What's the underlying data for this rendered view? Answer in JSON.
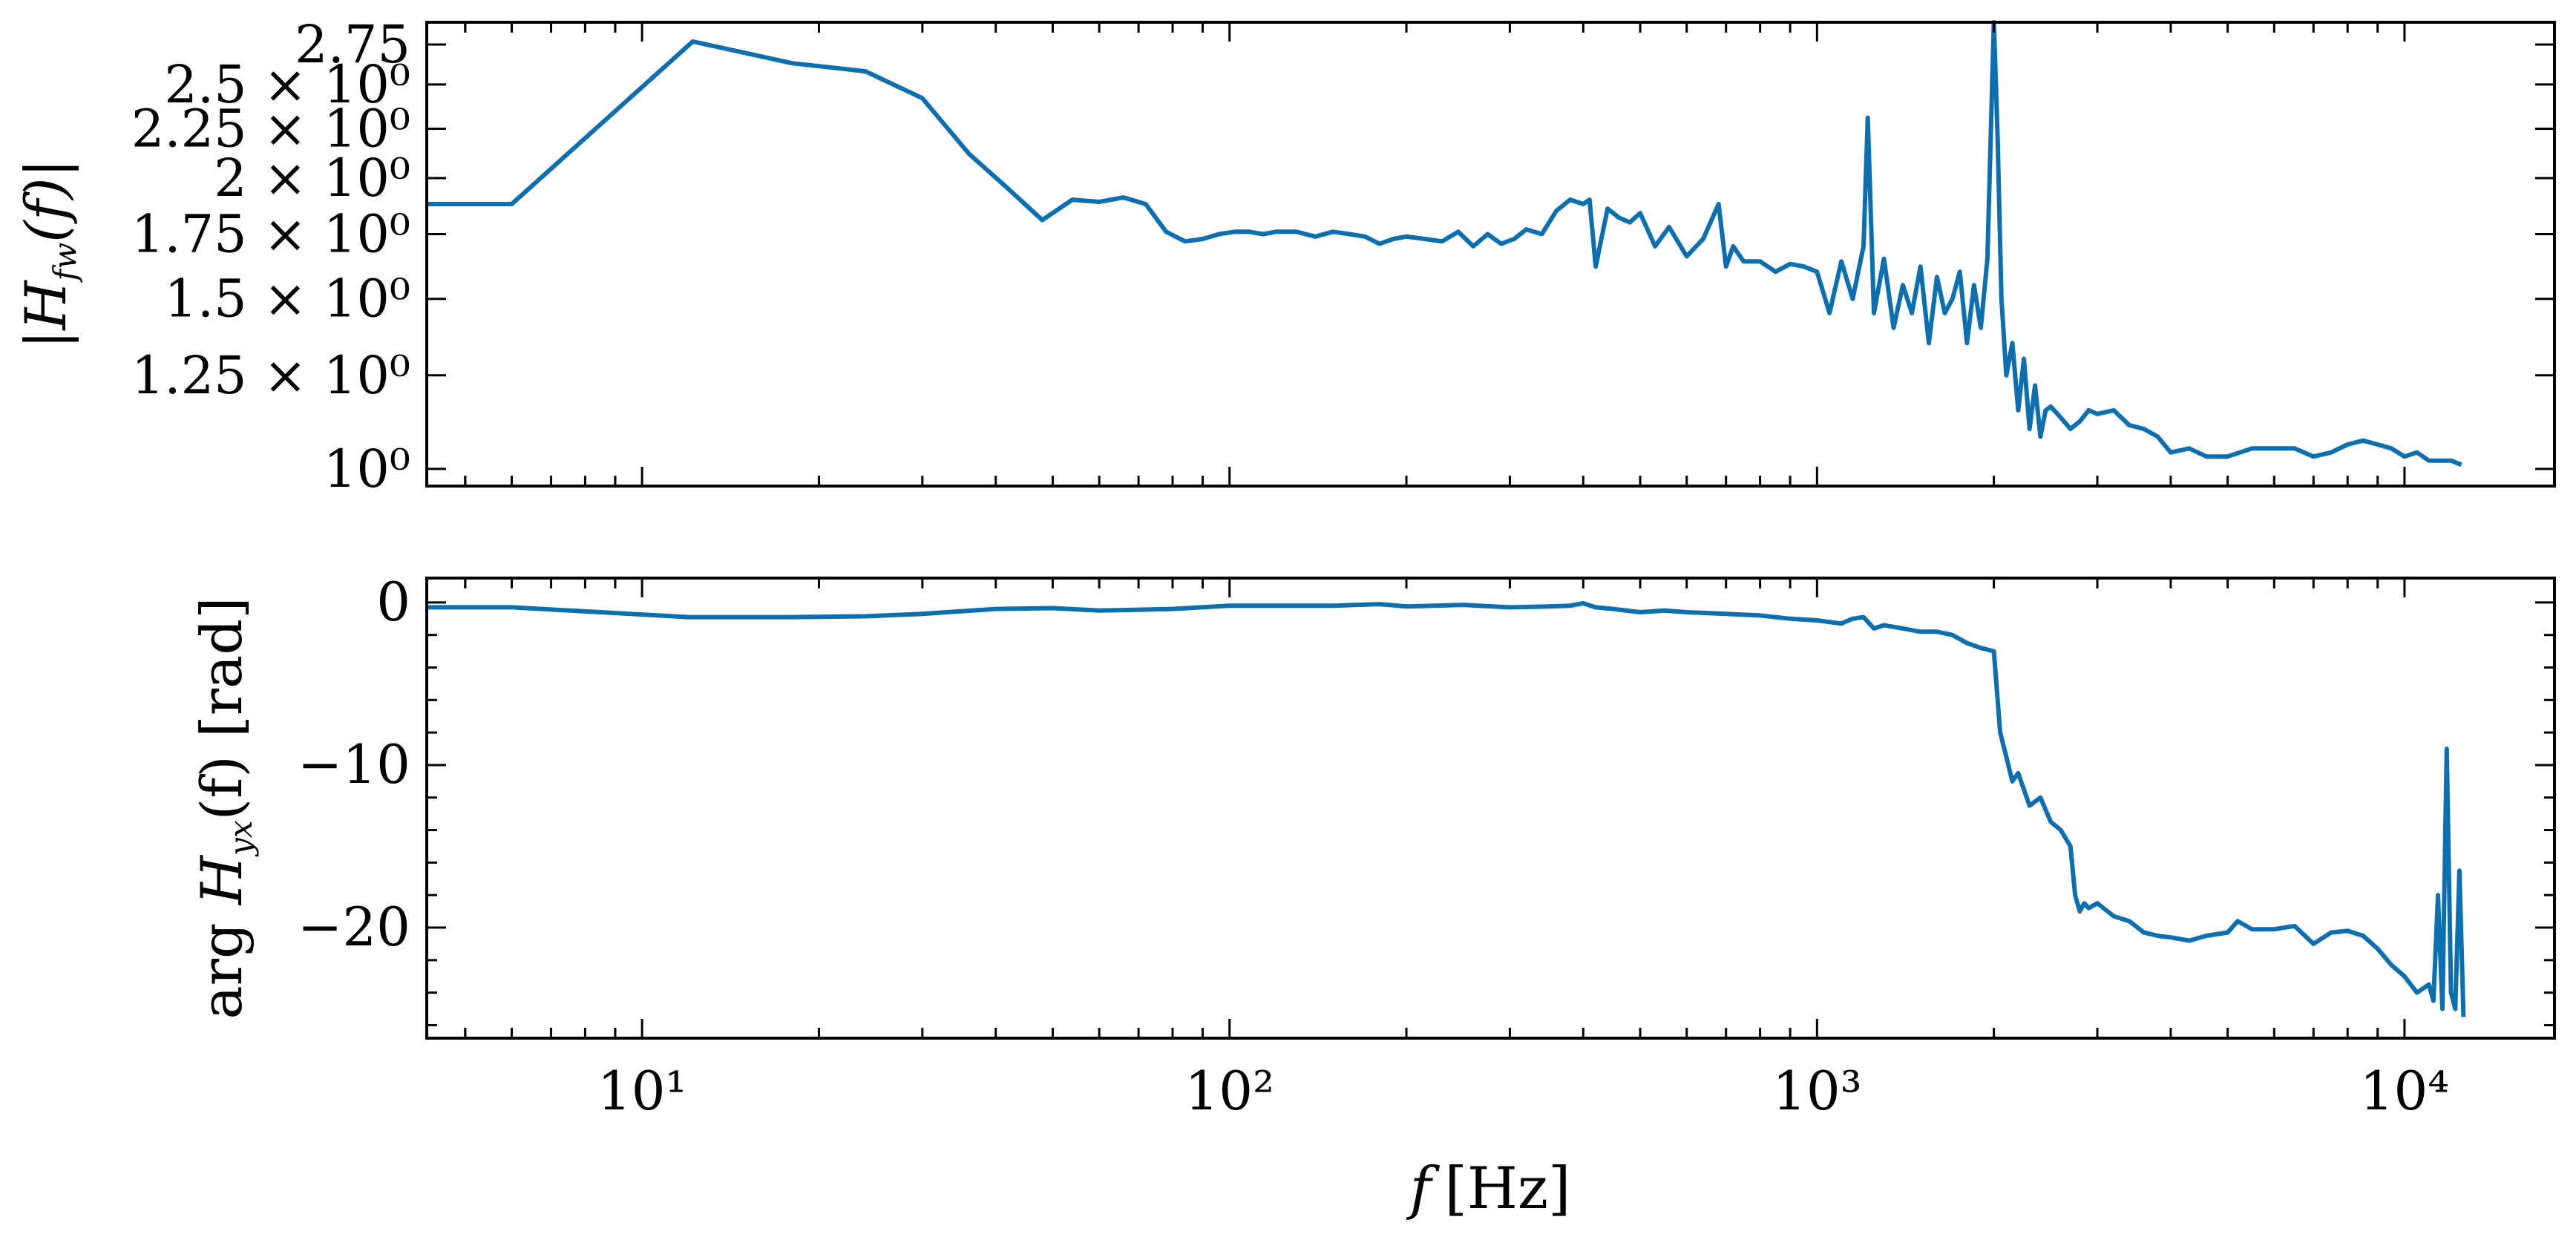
{
  "chart_data": [
    {
      "type": "line",
      "panel": "top",
      "ylabel": {
        "prefix": "|",
        "main": "H",
        "sub": "fw",
        "suffix": "(f)|"
      },
      "xscale": "log",
      "yscale": "log",
      "xlim": [
        4.3,
        18000
      ],
      "ylim": [
        0.96,
        2.9
      ],
      "yticks": [
        {
          "value": 1.0,
          "label": "10⁰"
        },
        {
          "value": 1.25,
          "label": "1.25 × 10⁰"
        },
        {
          "value": 1.5,
          "label": "1.5 × 10⁰"
        },
        {
          "value": 1.75,
          "label": "1.75 × 10⁰"
        },
        {
          "value": 2.0,
          "label": "2 × 10⁰"
        },
        {
          "value": 2.25,
          "label": "2.25 × 10⁰"
        },
        {
          "value": 2.5,
          "label": "2.5 × 10⁰"
        },
        {
          "value": 2.75,
          "label": "2.75"
        }
      ],
      "line_color": "#0c6fb0",
      "series": [
        {
          "x": [
            4.3,
            6,
            12.2,
            18,
            24,
            30,
            36,
            42,
            48,
            54,
            60,
            66,
            72,
            78,
            84,
            90,
            96,
            102,
            108,
            114,
            120,
            130,
            140,
            150,
            160,
            170,
            180,
            190,
            200,
            215,
            230,
            245,
            260,
            275,
            290,
            305,
            320,
            340,
            360,
            380,
            400,
            410,
            420,
            440,
            460,
            480,
            500,
            530,
            560,
            600,
            640,
            680,
            700,
            720,
            750,
            800,
            850,
            900,
            950,
            1000,
            1050,
            1100,
            1150,
            1200,
            1220,
            1250,
            1300,
            1350,
            1400,
            1450,
            1500,
            1550,
            1600,
            1650,
            1700,
            1750,
            1800,
            1850,
            1900,
            1950,
            2000,
            2030,
            2060,
            2100,
            2150,
            2200,
            2250,
            2300,
            2350,
            2400,
            2450,
            2500,
            2600,
            2700,
            2800,
            2900,
            3000,
            3200,
            3400,
            3600,
            3800,
            4000,
            4300,
            4600,
            5000,
            5500,
            6000,
            6500,
            7000,
            7500,
            8000,
            8500,
            9000,
            9500,
            10000,
            10500,
            11000,
            11500,
            12000,
            12500
          ],
          "y": [
            1.88,
            1.88,
            2.77,
            2.63,
            2.58,
            2.42,
            2.12,
            1.95,
            1.81,
            1.9,
            1.89,
            1.91,
            1.88,
            1.76,
            1.72,
            1.73,
            1.75,
            1.76,
            1.76,
            1.75,
            1.76,
            1.76,
            1.74,
            1.76,
            1.75,
            1.74,
            1.71,
            1.73,
            1.74,
            1.73,
            1.72,
            1.76,
            1.7,
            1.75,
            1.71,
            1.73,
            1.77,
            1.75,
            1.85,
            1.9,
            1.88,
            1.9,
            1.62,
            1.86,
            1.82,
            1.8,
            1.84,
            1.7,
            1.78,
            1.66,
            1.73,
            1.88,
            1.62,
            1.7,
            1.64,
            1.64,
            1.6,
            1.63,
            1.62,
            1.6,
            1.45,
            1.64,
            1.5,
            1.7,
            2.31,
            1.45,
            1.65,
            1.4,
            1.55,
            1.45,
            1.62,
            1.35,
            1.58,
            1.45,
            1.5,
            1.6,
            1.35,
            1.55,
            1.4,
            1.65,
            2.9,
            2.2,
            1.5,
            1.25,
            1.35,
            1.15,
            1.3,
            1.1,
            1.22,
            1.08,
            1.15,
            1.16,
            1.13,
            1.1,
            1.12,
            1.15,
            1.14,
            1.15,
            1.11,
            1.1,
            1.08,
            1.04,
            1.05,
            1.03,
            1.03,
            1.05,
            1.05,
            1.05,
            1.03,
            1.04,
            1.06,
            1.07,
            1.06,
            1.05,
            1.03,
            1.04,
            1.02,
            1.02,
            1.02,
            1.01
          ]
        }
      ]
    },
    {
      "type": "line",
      "panel": "bottom",
      "xlabel": {
        "main": "f",
        "unit": "[Hz]"
      },
      "ylabel": {
        "pre": "arg ",
        "main": "H",
        "sub": "yx",
        "suffix": "(f) [rad]"
      },
      "xscale": "log",
      "xlim": [
        4.3,
        18000
      ],
      "ylim": [
        -26.8,
        1.5
      ],
      "yticks": [
        {
          "value": 0,
          "label": "0"
        },
        {
          "value": -10,
          "label": "−10"
        },
        {
          "value": -20,
          "label": "−20"
        }
      ],
      "xticks": [
        {
          "value": 10,
          "label": "10¹"
        },
        {
          "value": 100,
          "label": "10²"
        },
        {
          "value": 1000,
          "label": "10³"
        },
        {
          "value": 10000,
          "label": "10⁴"
        }
      ],
      "line_color": "#0c6fb0",
      "series": [
        {
          "x": [
            4.3,
            6,
            12,
            18,
            24,
            30,
            40,
            50,
            60,
            80,
            100,
            120,
            150,
            180,
            200,
            250,
            300,
            350,
            380,
            400,
            420,
            450,
            500,
            550,
            600,
            700,
            800,
            900,
            1000,
            1100,
            1150,
            1200,
            1250,
            1300,
            1400,
            1500,
            1600,
            1700,
            1800,
            1900,
            1950,
            2000,
            2050,
            2100,
            2150,
            2200,
            2300,
            2400,
            2500,
            2600,
            2700,
            2750,
            2800,
            2850,
            2900,
            3000,
            3200,
            3400,
            3600,
            3800,
            4000,
            4300,
            4600,
            5000,
            5200,
            5500,
            6000,
            6500,
            7000,
            7500,
            8000,
            8500,
            9000,
            9500,
            10000,
            10500,
            11000,
            11200,
            11400,
            11600,
            11800,
            12000,
            12200,
            12400,
            12600
          ],
          "y": [
            -0.3,
            -0.3,
            -0.9,
            -0.9,
            -0.85,
            -0.7,
            -0.4,
            -0.35,
            -0.5,
            -0.4,
            -0.2,
            -0.2,
            -0.2,
            -0.1,
            -0.25,
            -0.15,
            -0.3,
            -0.25,
            -0.2,
            -0.05,
            -0.3,
            -0.4,
            -0.6,
            -0.5,
            -0.6,
            -0.7,
            -0.8,
            -1.0,
            -1.1,
            -1.3,
            -1.0,
            -0.9,
            -1.6,
            -1.4,
            -1.6,
            -1.8,
            -1.8,
            -2.0,
            -2.5,
            -2.8,
            -2.9,
            -3.0,
            -8.0,
            -9.5,
            -11.0,
            -10.5,
            -12.5,
            -12.0,
            -13.5,
            -14.0,
            -15.0,
            -18.0,
            -19.0,
            -18.5,
            -18.8,
            -18.5,
            -19.3,
            -19.6,
            -20.3,
            -20.5,
            -20.6,
            -20.8,
            -20.5,
            -20.3,
            -19.6,
            -20.1,
            -20.1,
            -19.9,
            -21.0,
            -20.3,
            -20.2,
            -20.5,
            -21.3,
            -22.3,
            -23.0,
            -24.0,
            -23.5,
            -24.5,
            -18.0,
            -25.0,
            -9.0,
            -24.0,
            -25.0,
            -16.5,
            -25.5
          ]
        }
      ]
    }
  ]
}
